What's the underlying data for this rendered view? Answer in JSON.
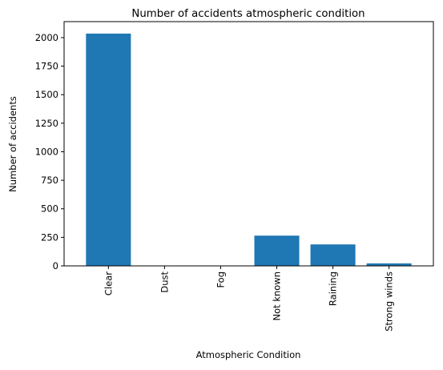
{
  "chart_data": {
    "type": "bar",
    "title": "Number of accidents atmospheric condition",
    "xlabel": "Atmospheric Condition",
    "ylabel": "Number of accidents",
    "categories": [
      "Clear",
      "Dust",
      "Fog",
      "Not known",
      "Raining",
      "Strong winds"
    ],
    "values": [
      2035,
      1,
      1,
      265,
      188,
      22
    ],
    "ylim": [
      0,
      2140
    ],
    "yticks": [
      0,
      250,
      500,
      750,
      1000,
      1250,
      1500,
      1750,
      2000
    ],
    "bar_color": "#1f77b4",
    "grid": false,
    "x_tick_rotation": "vertical"
  }
}
